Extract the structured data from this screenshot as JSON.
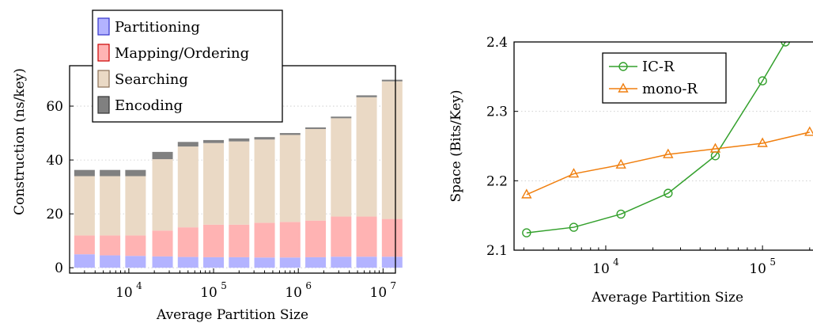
{
  "chart_data": [
    {
      "type": "bar",
      "stacked": true,
      "xlabel": "Average Partition Size",
      "ylabel": "Construction (ns/key)",
      "x_scale": "log",
      "xlim": [
        2000,
        14000000
      ],
      "ylim": [
        -2,
        75
      ],
      "yticks": [
        0,
        20,
        40,
        60
      ],
      "ytick_labels": [
        "0",
        "20",
        "40",
        "60"
      ],
      "xticks": [
        10000,
        100000,
        1000000,
        10000000
      ],
      "xtick_labels": [
        "10",
        "10",
        "10",
        "10"
      ],
      "xtick_exponents": [
        "4",
        "5",
        "6",
        "7"
      ],
      "grid": true,
      "legend_position": "top-left",
      "x": [
        3000,
        6000,
        12000,
        25000,
        50000,
        100000,
        200000,
        400000,
        800000,
        1600000,
        3200000,
        6400000,
        12800000
      ],
      "series": [
        {
          "name": "Partitioning",
          "color": "#b3b3ff",
          "border": "#3333cc",
          "values": [
            5,
            4.6,
            4.4,
            4.2,
            4.0,
            3.9,
            3.9,
            3.8,
            3.8,
            3.9,
            4.1,
            4.1,
            4.1
          ]
        },
        {
          "name": "Mapping/Ordering",
          "color": "#ffb3b3",
          "border": "#cc0000",
          "values": [
            7,
            7.4,
            7.6,
            9.6,
            11.0,
            12.1,
            12.1,
            12.9,
            13.2,
            13.6,
            14.9,
            14.9,
            14.0
          ]
        },
        {
          "name": "Searching",
          "color": "#ead9c5",
          "border": "#8a6f55",
          "values": [
            22,
            22,
            22,
            26.5,
            30,
            30.3,
            30.9,
            30.9,
            32.3,
            34,
            36.5,
            44.3,
            51.1
          ]
        },
        {
          "name": "Encoding",
          "color": "#808080",
          "border": "#333333",
          "values": [
            2.3,
            2.3,
            2.3,
            2.7,
            1.7,
            1.1,
            1.1,
            0.9,
            0.7,
            0.6,
            0.6,
            0.7,
            0.6
          ]
        }
      ]
    },
    {
      "type": "line",
      "xlabel": "Average Partition Size",
      "ylabel": "Space (Bits/Key)",
      "x_scale": "log",
      "xlim": [
        2600,
        210000
      ],
      "ylim": [
        2.1,
        2.4
      ],
      "yticks": [
        2.1,
        2.2,
        2.3,
        2.4
      ],
      "ytick_labels": [
        "2.1",
        "2.2",
        "2.3",
        "2.4"
      ],
      "xticks": [
        10000,
        100000
      ],
      "xtick_labels": [
        "10",
        "10"
      ],
      "xtick_exponents": [
        "4",
        "5"
      ],
      "grid": true,
      "legend_position": "top-center",
      "series": [
        {
          "name": "IC-R",
          "color": "#33a02c",
          "marker": "circle",
          "x": [
            3125,
            6250,
            12500,
            25000,
            50000,
            100000,
            140000
          ],
          "y": [
            2.125,
            2.133,
            2.152,
            2.182,
            2.236,
            2.344,
            2.4
          ]
        },
        {
          "name": "mono-R",
          "color": "#f07f0f",
          "marker": "triangle",
          "x": [
            3125,
            6250,
            12500,
            25000,
            50000,
            100000,
            200000
          ],
          "y": [
            2.18,
            2.21,
            2.223,
            2.238,
            2.246,
            2.254,
            2.27
          ]
        }
      ]
    }
  ]
}
